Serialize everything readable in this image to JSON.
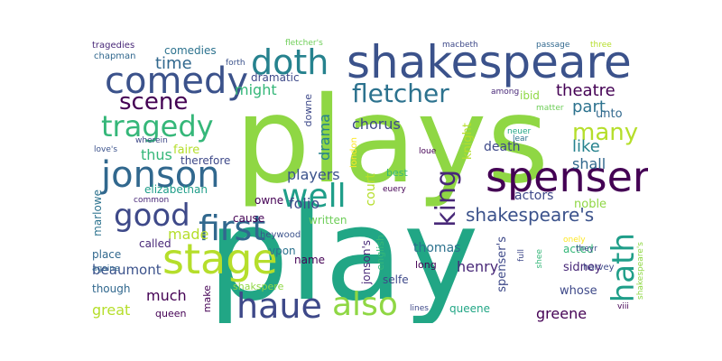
{
  "wordcloud": {
    "words": {
      "plays": {
        "text": "plays",
        "color": "#8fd744"
      },
      "play": {
        "text": "play",
        "color": "#21a685"
      },
      "shakespeare": {
        "text": "shakespeare",
        "color": "#3b528b"
      },
      "spenser": {
        "text": "spenser",
        "color": "#440154"
      },
      "stage": {
        "text": "stage",
        "color": "#b5de2b"
      },
      "jonson": {
        "text": "jonson",
        "color": "#31688e"
      },
      "first": {
        "text": "first",
        "color": "#31688e"
      },
      "haue": {
        "text": "haue",
        "color": "#3e4989"
      },
      "also": {
        "text": "also",
        "color": "#8fd744"
      },
      "comedy": {
        "text": "comedy",
        "color": "#3b528b"
      },
      "doth": {
        "text": "doth",
        "color": "#26828e"
      },
      "tragedy": {
        "text": "tragedy",
        "color": "#35b779"
      },
      "well": {
        "text": "well",
        "color": "#1f9e89"
      },
      "good": {
        "text": "good",
        "color": "#3e4989"
      },
      "fletcher": {
        "text": "fletcher",
        "color": "#2c728e"
      },
      "hath": {
        "text": "hath",
        "color": "#1f9e89"
      },
      "king": {
        "text": "king",
        "color": "#482878"
      },
      "many": {
        "text": "many",
        "color": "#b5de2b"
      },
      "scene": {
        "text": "scene",
        "color": "#440154"
      },
      "shakespeares": {
        "text": "shakespeare's",
        "color": "#3b528b"
      },
      "time": {
        "text": "time",
        "color": "#31688e"
      },
      "might": {
        "text": "might",
        "color": "#35b779"
      },
      "dramatic": {
        "text": "dramatic",
        "color": "#3e4989"
      },
      "comedies": {
        "text": "comedies",
        "color": "#2c728e"
      },
      "tragedies": {
        "text": "tragedies",
        "color": "#482878"
      },
      "chapman": {
        "text": "chapman",
        "color": "#31688e"
      },
      "forth": {
        "text": "forth",
        "color": "#3b528b"
      },
      "fletchers": {
        "text": "fletcher's",
        "color": "#6ece58"
      },
      "macbeth": {
        "text": "macbeth",
        "color": "#3e4989"
      },
      "passage": {
        "text": "passage",
        "color": "#31688e"
      },
      "three": {
        "text": "three",
        "color": "#b5de2b"
      },
      "theatre": {
        "text": "theatre",
        "color": "#440154"
      },
      "part": {
        "text": "part",
        "color": "#2c728e"
      },
      "unto": {
        "text": "unto",
        "color": "#31688e"
      },
      "among": {
        "text": "among",
        "color": "#482878"
      },
      "ibid": {
        "text": "ibid",
        "color": "#8fd744"
      },
      "matter": {
        "text": "matter",
        "color": "#6ece58"
      },
      "like": {
        "text": "like",
        "color": "#26828e"
      },
      "shall": {
        "text": "shall",
        "color": "#31688e"
      },
      "drama": {
        "text": "drama",
        "color": "#26828e"
      },
      "downe": {
        "text": "downe",
        "color": "#3e4989"
      },
      "chorus": {
        "text": "chorus",
        "color": "#3e4989"
      },
      "london": {
        "text": "london",
        "color": "#fde725"
      },
      "knight": {
        "text": "knight",
        "color": "#b5de2b"
      },
      "death": {
        "text": "death",
        "color": "#3e4989"
      },
      "neuer": {
        "text": "neuer",
        "color": "#21a685"
      },
      "lear": {
        "text": "lear",
        "color": "#2c728e"
      },
      "loue": {
        "text": "loue",
        "color": "#440154"
      },
      "faire": {
        "text": "faire",
        "color": "#b5de2b"
      },
      "therefore": {
        "text": "therefore",
        "color": "#3e4989"
      },
      "thus": {
        "text": "thus",
        "color": "#35b779"
      },
      "loves": {
        "text": "love's",
        "color": "#3b528b"
      },
      "wherein": {
        "text": "wherein",
        "color": "#3e4989"
      },
      "elizabethan": {
        "text": "elizabethan",
        "color": "#1f9e89"
      },
      "players": {
        "text": "players",
        "color": "#3b528b"
      },
      "best": {
        "text": "best",
        "color": "#35b779"
      },
      "euery": {
        "text": "euery",
        "color": "#440154"
      },
      "actors": {
        "text": "actors",
        "color": "#3e4989"
      },
      "noble": {
        "text": "noble",
        "color": "#8fd744"
      },
      "marlowe": {
        "text": "marlowe",
        "color": "#2c728e"
      },
      "common": {
        "text": "common",
        "color": "#482878"
      },
      "owne": {
        "text": "owne",
        "color": "#440154"
      },
      "folio": {
        "text": "folio",
        "color": "#3e4989"
      },
      "court": {
        "text": "court",
        "color": "#b5de2b"
      },
      "made": {
        "text": "made",
        "color": "#b5de2b"
      },
      "cause": {
        "text": "cause",
        "color": "#440154"
      },
      "written": {
        "text": "written",
        "color": "#6ece58"
      },
      "called": {
        "text": "called",
        "color": "#482878"
      },
      "place": {
        "text": "place",
        "color": "#31688e"
      },
      "heywood": {
        "text": "heywood",
        "color": "#3b528b"
      },
      "vpon": {
        "text": "vpon",
        "color": "#2c728e"
      },
      "beaumont": {
        "text": "beaumont",
        "color": "#3b528b"
      },
      "though": {
        "text": "though",
        "color": "#31688e"
      },
      "much": {
        "text": "much",
        "color": "#440154"
      },
      "great": {
        "text": "great",
        "color": "#b5de2b"
      },
      "queen": {
        "text": "queen",
        "color": "#440154"
      },
      "make": {
        "text": "make",
        "color": "#440154"
      },
      "shakspere": {
        "text": "shakspere",
        "color": "#8fd744"
      },
      "name": {
        "text": "name",
        "color": "#440154"
      },
      "jonsons": {
        "text": "jonson's",
        "color": "#482878"
      },
      "english": {
        "text": "english",
        "color": "#35b779"
      },
      "thomas": {
        "text": "thomas",
        "color": "#2c728e"
      },
      "long": {
        "text": "long",
        "color": "#440154"
      },
      "selfe": {
        "text": "selfe",
        "color": "#3e4989"
      },
      "henry": {
        "text": "henry",
        "color": "#482878"
      },
      "spensers": {
        "text": "spenser's",
        "color": "#3e4989"
      },
      "full": {
        "text": "full",
        "color": "#3e4989"
      },
      "shee": {
        "text": "shee",
        "color": "#35b779"
      },
      "acted": {
        "text": "acted",
        "color": "#35b779"
      },
      "sidney": {
        "text": "sidney",
        "color": "#482878"
      },
      "whose": {
        "text": "whose",
        "color": "#3e4989"
      },
      "greene": {
        "text": "greene",
        "color": "#440154"
      },
      "queene": {
        "text": "queene",
        "color": "#21a685"
      },
      "lines": {
        "text": "lines",
        "color": "#3e4989"
      },
      "againe": {
        "text": "againe",
        "color": "#31688e"
      },
      "onely": {
        "text": "onely",
        "color": "#fde725"
      },
      "theyr": {
        "text": "theyr",
        "color": "#3e4989"
      },
      "harvey": {
        "text": "harvey",
        "color": "#3e4989"
      },
      "shakespeares2": {
        "text": "shakespeare's",
        "color": "#8fd744"
      },
      "viii": {
        "text": "viii",
        "color": "#440154"
      }
    }
  }
}
